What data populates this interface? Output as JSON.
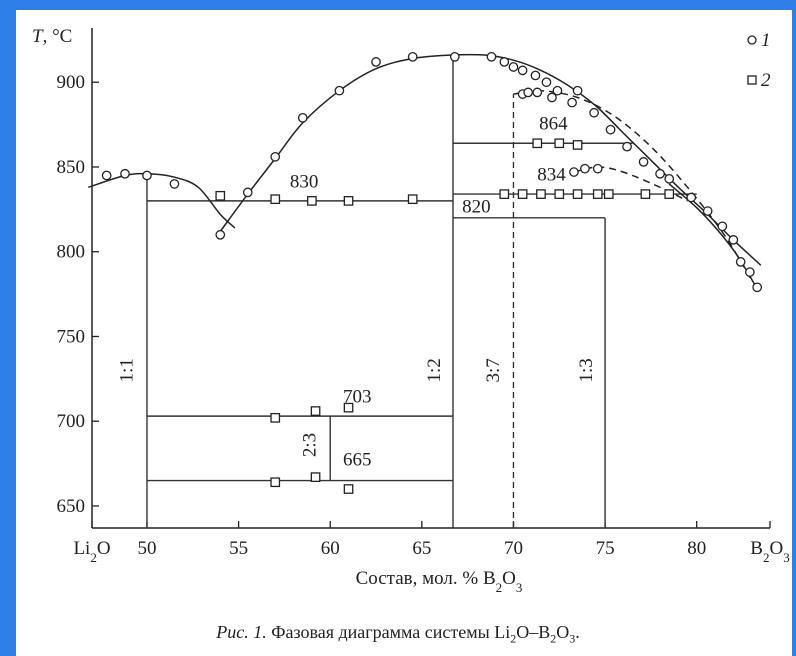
{
  "chart_data": {
    "type": "scatter",
    "xlabel": "Состав, мол. % B2O3",
    "ylabel": "T, °C",
    "xlim": [
      47,
      84
    ],
    "ylim": [
      637,
      932
    ],
    "x_ticks": [
      {
        "value": 47,
        "label": "Li2O"
      },
      {
        "value": 50,
        "label": "50"
      },
      {
        "value": 55,
        "label": "55"
      },
      {
        "value": 60,
        "label": "60"
      },
      {
        "value": 65,
        "label": "65"
      },
      {
        "value": 70,
        "label": "70"
      },
      {
        "value": 75,
        "label": "75"
      },
      {
        "value": 80,
        "label": "80"
      },
      {
        "value": 84,
        "label": "B2O3"
      }
    ],
    "y_ticks": [
      650,
      700,
      750,
      800,
      850,
      900
    ],
    "legend": {
      "placement": "top-right",
      "entries": [
        {
          "marker": "circle",
          "label": "1"
        },
        {
          "marker": "square",
          "label": "2"
        }
      ]
    },
    "series": [
      {
        "name": "1",
        "marker": "circle",
        "points": [
          [
            47.8,
            845
          ],
          [
            48.8,
            846
          ],
          [
            50,
            845
          ],
          [
            51.5,
            840
          ],
          [
            54,
            810
          ],
          [
            55.5,
            835
          ],
          [
            57,
            856
          ],
          [
            58.5,
            879
          ],
          [
            60.5,
            895
          ],
          [
            62.5,
            912
          ],
          [
            64.5,
            915
          ],
          [
            66.8,
            915
          ],
          [
            68.8,
            915
          ],
          [
            69.5,
            912
          ],
          [
            70,
            909
          ],
          [
            70.5,
            907
          ],
          [
            71.2,
            904
          ],
          [
            71.8,
            900
          ],
          [
            72.4,
            895
          ],
          [
            73.5,
            895
          ],
          [
            74.4,
            882
          ],
          [
            75.3,
            872
          ],
          [
            76.2,
            862
          ],
          [
            77.1,
            853
          ],
          [
            78,
            846
          ],
          [
            78.5,
            843
          ],
          [
            79.7,
            832
          ],
          [
            80.6,
            824
          ],
          [
            81.4,
            815
          ],
          [
            82,
            807
          ],
          [
            82.4,
            794
          ],
          [
            82.9,
            788
          ],
          [
            83.3,
            779
          ],
          [
            70.5,
            893
          ],
          [
            70.8,
            894
          ],
          [
            71.3,
            894
          ],
          [
            72.1,
            891
          ],
          [
            73.2,
            888
          ],
          [
            73.3,
            847
          ],
          [
            73.9,
            849
          ],
          [
            74.6,
            849
          ]
        ]
      },
      {
        "name": "2",
        "marker": "square",
        "points": [
          [
            54,
            833
          ],
          [
            57,
            831
          ],
          [
            59,
            830
          ],
          [
            61,
            830
          ],
          [
            64.5,
            831
          ],
          [
            69.5,
            834
          ],
          [
            70.5,
            834
          ],
          [
            71.5,
            834
          ],
          [
            72.5,
            834
          ],
          [
            73.5,
            834
          ],
          [
            74.6,
            834
          ],
          [
            75.2,
            834
          ],
          [
            77.2,
            834
          ],
          [
            78.5,
            834
          ],
          [
            71.3,
            864
          ],
          [
            72.5,
            864
          ],
          [
            73.5,
            863
          ],
          [
            57,
            702
          ],
          [
            59.2,
            706
          ],
          [
            61,
            708
          ],
          [
            57,
            664
          ],
          [
            59.2,
            667
          ],
          [
            61,
            660
          ]
        ]
      }
    ],
    "curves": [
      {
        "name": "liquidus-left",
        "style": "solid",
        "points": [
          [
            46.8,
            838
          ],
          [
            48.8,
            845
          ],
          [
            50,
            846
          ],
          [
            51.5,
            844
          ],
          [
            52.8,
            838
          ],
          [
            54,
            822
          ],
          [
            54.8,
            814
          ]
        ]
      },
      {
        "name": "liquidus-main",
        "style": "solid",
        "points": [
          [
            54,
            812
          ],
          [
            55.5,
            834
          ],
          [
            57,
            855
          ],
          [
            58.5,
            876
          ],
          [
            60.5,
            895
          ],
          [
            62.5,
            908
          ],
          [
            64.5,
            914
          ],
          [
            66.5,
            916
          ],
          [
            68.5,
            916
          ],
          [
            70,
            913
          ],
          [
            71.5,
            907
          ],
          [
            73,
            898
          ],
          [
            74.5,
            886
          ],
          [
            76,
            870
          ],
          [
            77.5,
            854
          ],
          [
            79,
            838
          ],
          [
            80.5,
            823
          ],
          [
            82,
            807
          ],
          [
            83.5,
            792
          ]
        ]
      },
      {
        "name": "liquidus-right-lower",
        "style": "solid",
        "points": [
          [
            78.5,
            840
          ],
          [
            80,
            826
          ],
          [
            81.2,
            812
          ],
          [
            82.2,
            798
          ],
          [
            83.2,
            780
          ]
        ]
      },
      {
        "name": "metastable-3-7",
        "style": "dashed",
        "points": [
          [
            70,
            893
          ],
          [
            71.5,
            895
          ],
          [
            73.5,
            891
          ],
          [
            75.5,
            880
          ],
          [
            77.5,
            862
          ],
          [
            79.5,
            838
          ],
          [
            81.5,
            810
          ],
          [
            83,
            783
          ]
        ]
      },
      {
        "name": "metastable-1-3",
        "style": "dashed",
        "points": [
          [
            73.3,
            847
          ],
          [
            74.6,
            850
          ],
          [
            76,
            847
          ],
          [
            78,
            838
          ],
          [
            79.5,
            830
          ]
        ]
      }
    ],
    "horizontal_lines": [
      {
        "y": 830,
        "x1": 50,
        "x2": 66.7
      },
      {
        "y": 820,
        "x1": 66.7,
        "x2": 75
      },
      {
        "y": 834,
        "x1": 66.7,
        "x2": 80
      },
      {
        "y": 864,
        "x1": 66.7,
        "x2": 76.5
      },
      {
        "y": 703,
        "x1": 50,
        "x2": 66.7
      },
      {
        "y": 665,
        "x1": 50,
        "x2": 66.7
      }
    ],
    "vertical_lines": [
      {
        "x": 50,
        "y1": 637,
        "y2": 846,
        "style": "solid"
      },
      {
        "x": 66.7,
        "y1": 637,
        "y2": 916,
        "style": "solid"
      },
      {
        "x": 75,
        "y1": 637,
        "y2": 820,
        "style": "solid"
      },
      {
        "x": 70,
        "y1": 637,
        "y2": 893,
        "style": "dashed"
      },
      {
        "x": 60,
        "y1": 665,
        "y2": 703,
        "style": "solid"
      }
    ],
    "annotations": [
      {
        "text": "830",
        "x": 57.8,
        "y": 838
      },
      {
        "text": "820",
        "x": 67.2,
        "y": 823
      },
      {
        "text": "864",
        "x": 71.4,
        "y": 872
      },
      {
        "text": "834",
        "x": 71.3,
        "y": 842
      },
      {
        "text": "703",
        "x": 60.7,
        "y": 711
      },
      {
        "text": "665",
        "x": 60.7,
        "y": 674
      }
    ],
    "vertical_labels": [
      {
        "text": "1:1",
        "x": 49.2,
        "y": 730
      },
      {
        "text": "1:2",
        "x": 66.0,
        "y": 730
      },
      {
        "text": "3:7",
        "x": 69.2,
        "y": 730
      },
      {
        "text": "1:3",
        "x": 74.3,
        "y": 730
      },
      {
        "text": "2:3",
        "x": 59.2,
        "y": 686
      }
    ]
  },
  "caption": {
    "prefix": "Рис. 1.",
    "text": "Фазовая диаграмма системы Li2O–B2O3."
  }
}
